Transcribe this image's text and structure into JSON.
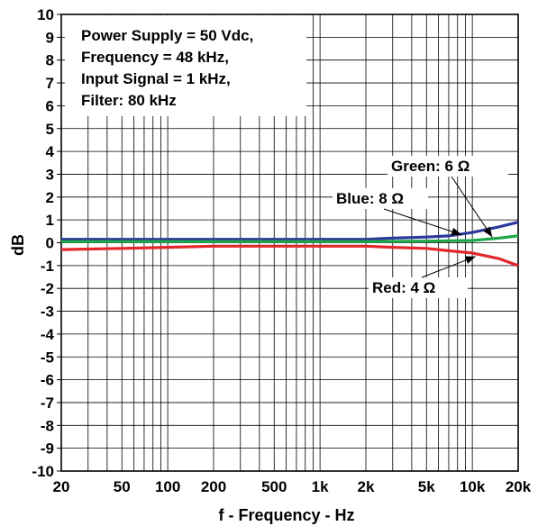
{
  "chart_data": {
    "type": "line",
    "title": "",
    "xlabel": "f - Frequency - Hz",
    "ylabel": "dB",
    "xscale": "log",
    "xlim": [
      20,
      20000
    ],
    "ylim": [
      -10,
      10
    ],
    "grid": true,
    "x_ticks": [
      {
        "value": 20,
        "label": "20"
      },
      {
        "value": 50,
        "label": "50"
      },
      {
        "value": 100,
        "label": "100"
      },
      {
        "value": 200,
        "label": "200"
      },
      {
        "value": 500,
        "label": "500"
      },
      {
        "value": 1000,
        "label": "1k"
      },
      {
        "value": 2000,
        "label": "2k"
      },
      {
        "value": 5000,
        "label": "5k"
      },
      {
        "value": 10000,
        "label": "10k"
      },
      {
        "value": 20000,
        "label": "20k"
      }
    ],
    "y_ticks": [
      10,
      9,
      8,
      7,
      6,
      5,
      4,
      3,
      2,
      1,
      0,
      -1,
      -2,
      -3,
      -4,
      -5,
      -6,
      -7,
      -8,
      -9,
      -10
    ],
    "conditions": [
      "Power Supply = 50 Vdc,",
      "Frequency = 48 kHz,",
      "Input Signal = 1 kHz,",
      "Filter: 80 kHz"
    ],
    "series": [
      {
        "name": "Blue: 8 Ω",
        "color": "#2b3a9a",
        "x": [
          20,
          50,
          100,
          200,
          500,
          1000,
          2000,
          3000,
          5000,
          7000,
          10000,
          15000,
          20000
        ],
        "y": [
          0.15,
          0.15,
          0.15,
          0.15,
          0.15,
          0.15,
          0.15,
          0.2,
          0.25,
          0.3,
          0.45,
          0.7,
          0.9
        ]
      },
      {
        "name": "Green: 6 Ω",
        "color": "#1fa84a",
        "x": [
          20,
          50,
          100,
          200,
          500,
          1000,
          2000,
          5000,
          10000,
          15000,
          20000
        ],
        "y": [
          0.05,
          0.05,
          0.05,
          0.05,
          0.05,
          0.05,
          0.05,
          0.07,
          0.1,
          0.2,
          0.3
        ]
      },
      {
        "name": "Red: 4 Ω",
        "color": "#e3262b",
        "x": [
          20,
          50,
          100,
          200,
          500,
          1000,
          2000,
          3000,
          5000,
          7000,
          10000,
          15000,
          20000
        ],
        "y": [
          -0.3,
          -0.25,
          -0.2,
          -0.15,
          -0.15,
          -0.15,
          -0.15,
          -0.2,
          -0.25,
          -0.35,
          -0.45,
          -0.7,
          -1.0
        ]
      }
    ],
    "annotations": [
      {
        "text": "Green: 6 Ω",
        "series": 1,
        "arrow_to": [
          13500,
          0.25
        ]
      },
      {
        "text": "Blue: 8 Ω",
        "series": 0,
        "arrow_to": [
          8500,
          0.35
        ]
      },
      {
        "text": "Red: 4 Ω",
        "series": 2,
        "arrow_to": [
          10500,
          -0.6
        ]
      }
    ]
  }
}
